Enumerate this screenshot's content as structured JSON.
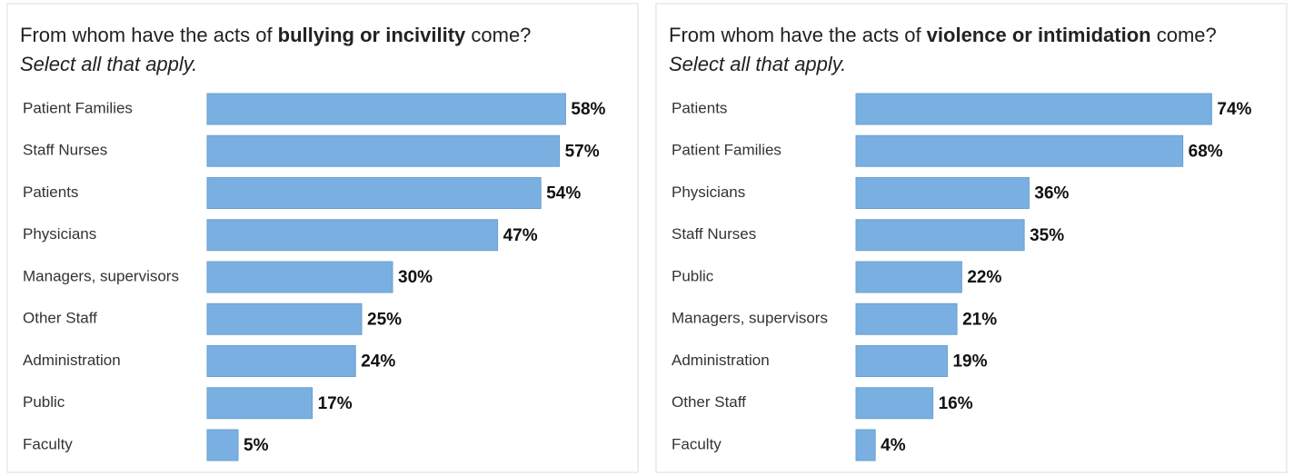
{
  "chart_data": [
    {
      "type": "hbar",
      "title": [
        "From whom have the acts of ",
        "bullying or incivility",
        " come?"
      ],
      "subtitle": "Select all that apply.",
      "categories": [
        "Patient Families",
        "Staff Nurses",
        "Patients",
        "Physicians",
        "Managers, supervisors",
        "Other Staff",
        "Administration",
        "Public",
        "Faculty"
      ],
      "values": [
        58,
        57,
        54,
        47,
        30,
        25,
        24,
        17,
        5
      ],
      "value_labels": [
        "58%",
        "57%",
        "54%",
        "47%",
        "30%",
        "25%",
        "24%",
        "17%",
        "5%"
      ],
      "color": "#7ab0e1",
      "xlim": [
        0,
        70
      ]
    },
    {
      "type": "hbar",
      "title": [
        "From whom have the acts of ",
        "violence or intimidation",
        " come?"
      ],
      "subtitle": "Select all that apply.",
      "categories": [
        "Patients",
        "Patient Families",
        "Physicians",
        "Staff Nurses",
        "Public",
        "Managers, supervisors",
        "Administration",
        "Other Staff",
        "Faculty"
      ],
      "values": [
        74,
        68,
        36,
        35,
        22,
        21,
        19,
        16,
        4
      ],
      "value_labels": [
        "74%",
        "68%",
        "36%",
        "35%",
        "22%",
        "21%",
        "19%",
        "16%",
        "4%"
      ],
      "color": "#7ab0e1",
      "xlim": [
        0,
        90
      ]
    }
  ]
}
